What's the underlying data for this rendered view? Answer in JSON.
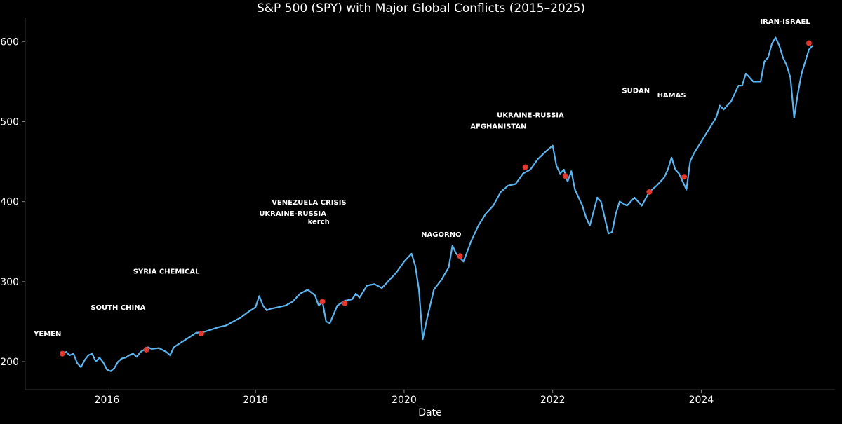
{
  "chart_data": {
    "type": "line",
    "title": "S&P 500 (SPY) with Major Global Conflicts (2015–2025)",
    "xlabel": "Date",
    "ylabel": "",
    "grid": false,
    "xlim": [
      2014.9,
      2025.8
    ],
    "ylim": [
      165,
      630
    ],
    "xticks": [
      2016,
      2018,
      2020,
      2022,
      2024
    ],
    "yticks": [
      200,
      300,
      400,
      500,
      600
    ],
    "colors": {
      "line": "#5ab4f0",
      "marker": "#e2382d",
      "background": "#000000",
      "text": "#ffffff"
    },
    "series": [
      {
        "x": [
          2015.4,
          2015.45,
          2015.5,
          2015.55,
          2015.6,
          2015.65,
          2015.7,
          2015.75,
          2015.8,
          2015.85,
          2015.9,
          2015.95,
          2016.0,
          2016.05,
          2016.1,
          2016.15,
          2016.2,
          2016.25,
          2016.3,
          2016.35,
          2016.4,
          2016.45,
          2016.5,
          2016.55,
          2016.6,
          2016.7,
          2016.8,
          2016.85,
          2016.9,
          2017.0,
          2017.1,
          2017.2,
          2017.3,
          2017.4,
          2017.5,
          2017.6,
          2017.7,
          2017.8,
          2017.9,
          2018.0,
          2018.05,
          2018.1,
          2018.15,
          2018.2,
          2018.3,
          2018.4,
          2018.5,
          2018.6,
          2018.7,
          2018.8,
          2018.85,
          2018.9,
          2018.95,
          2019.0,
          2019.1,
          2019.2,
          2019.3,
          2019.35,
          2019.4,
          2019.5,
          2019.6,
          2019.7,
          2019.8,
          2019.9,
          2020.0,
          2020.1,
          2020.15,
          2020.2,
          2020.25,
          2020.3,
          2020.4,
          2020.5,
          2020.6,
          2020.65,
          2020.7,
          2020.75,
          2020.8,
          2020.9,
          2021.0,
          2021.1,
          2021.2,
          2021.3,
          2021.4,
          2021.5,
          2021.6,
          2021.7,
          2021.8,
          2021.9,
          2022.0,
          2022.05,
          2022.1,
          2022.15,
          2022.2,
          2022.25,
          2022.3,
          2022.4,
          2022.45,
          2022.5,
          2022.6,
          2022.65,
          2022.7,
          2022.75,
          2022.8,
          2022.85,
          2022.9,
          2023.0,
          2023.1,
          2023.2,
          2023.3,
          2023.4,
          2023.5,
          2023.55,
          2023.6,
          2023.65,
          2023.7,
          2023.75,
          2023.8,
          2023.85,
          2023.9,
          2024.0,
          2024.1,
          2024.2,
          2024.25,
          2024.3,
          2024.4,
          2024.5,
          2024.55,
          2024.6,
          2024.7,
          2024.8,
          2024.85,
          2024.9,
          2024.95,
          2025.0,
          2025.05,
          2025.1,
          2025.15,
          2025.2,
          2025.25,
          2025.3,
          2025.35,
          2025.4,
          2025.45,
          2025.5
        ],
        "values": [
          210,
          212,
          208,
          210,
          198,
          193,
          202,
          208,
          210,
          200,
          205,
          199,
          190,
          188,
          192,
          200,
          204,
          205,
          208,
          210,
          206,
          212,
          215,
          218,
          216,
          217,
          212,
          208,
          218,
          224,
          230,
          236,
          237,
          240,
          243,
          245,
          250,
          255,
          262,
          268,
          282,
          270,
          264,
          266,
          268,
          270,
          275,
          285,
          290,
          283,
          270,
          275,
          250,
          248,
          270,
          276,
          278,
          285,
          280,
          295,
          297,
          292,
          302,
          312,
          325,
          335,
          320,
          290,
          228,
          250,
          290,
          302,
          318,
          345,
          335,
          330,
          325,
          350,
          370,
          385,
          395,
          412,
          420,
          422,
          435,
          440,
          453,
          462,
          470,
          445,
          435,
          440,
          425,
          438,
          415,
          395,
          380,
          370,
          405,
          400,
          380,
          360,
          362,
          385,
          400,
          395,
          405,
          395,
          412,
          420,
          430,
          440,
          455,
          440,
          435,
          425,
          415,
          450,
          460,
          475,
          490,
          505,
          520,
          515,
          525,
          545,
          545,
          560,
          550,
          550,
          575,
          580,
          597,
          605,
          595,
          580,
          570,
          555,
          505,
          535,
          560,
          575,
          590,
          595
        ]
      }
    ],
    "events": [
      {
        "label": "YEMEN",
        "x": 2015.4,
        "y": 210,
        "label_x": 2015.2,
        "label_y": 232
      },
      {
        "label": "SOUTH CHINA",
        "x": 2016.53,
        "y": 215,
        "label_x": 2016.15,
        "label_y": 265
      },
      {
        "label": "SYRIA CHEMICAL",
        "x": 2017.27,
        "y": 235,
        "label_x": 2016.8,
        "label_y": 310
      },
      {
        "label": "UKRAINE-RUSSIA",
        "x": 2018.9,
        "y": 275,
        "label_x": 2018.5,
        "label_y": 382
      },
      {
        "label": "kerch",
        "x": 2018.9,
        "y": 275,
        "label_x": 2018.85,
        "label_y": 372
      },
      {
        "label": "VENEZUELA CRISIS",
        "x": 2019.2,
        "y": 273,
        "label_x": 2018.72,
        "label_y": 396
      },
      {
        "label": "NAGORNO",
        "x": 2020.75,
        "y": 332,
        "label_x": 2020.5,
        "label_y": 356
      },
      {
        "label": "AFGHANISTAN",
        "x": 2021.63,
        "y": 443,
        "label_x": 2021.27,
        "label_y": 491
      },
      {
        "label": "UKRAINE-RUSSIA",
        "x": 2022.17,
        "y": 432,
        "label_x": 2021.7,
        "label_y": 505
      },
      {
        "label": "SUDAN",
        "x": 2023.3,
        "y": 412,
        "label_x": 2023.12,
        "label_y": 536
      },
      {
        "label": "HAMAS",
        "x": 2023.77,
        "y": 431,
        "label_x": 2023.6,
        "label_y": 530
      },
      {
        "label": "IRAN-ISRAEL",
        "x": 2025.45,
        "y": 598,
        "label_x": 2025.13,
        "label_y": 622
      }
    ]
  }
}
